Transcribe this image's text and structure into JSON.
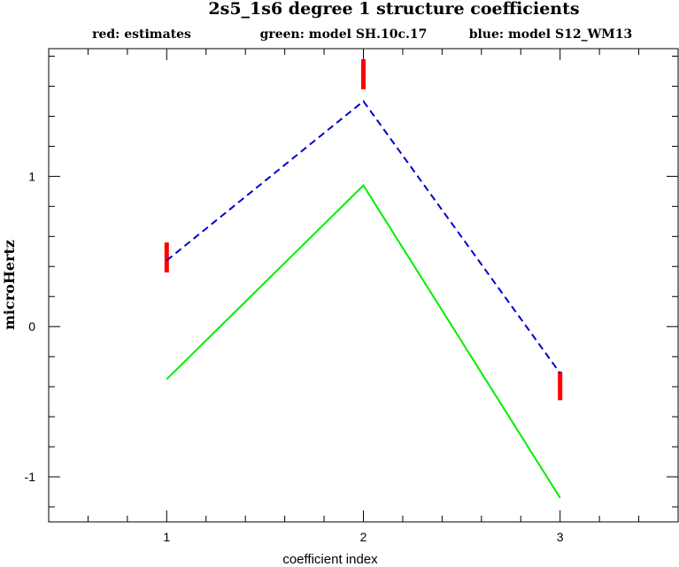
{
  "chart_data": {
    "type": "line",
    "title": "2s5_1s6 degree 1 structure coefficients",
    "xlabel": "coefficient index",
    "ylabel": "microHertz",
    "xlim": [
      0.4,
      3.6
    ],
    "ylim": [
      -1.3,
      1.85
    ],
    "x_ticks": [
      1,
      2,
      3
    ],
    "y_ticks": [
      -1,
      0,
      1
    ],
    "x_minor_step": 0.2,
    "y_minor_step": 0.2,
    "legend": [
      {
        "text": "red: estimates",
        "color": "#ff0000"
      },
      {
        "text": "green: model SH.10c.17",
        "color": "#00ee00"
      },
      {
        "text": "blue: model S12_WM13",
        "color": "#0000cc"
      }
    ],
    "series": [
      {
        "kind": "errorbar",
        "color": "#ff0000",
        "x": [
          1,
          2,
          3
        ],
        "low": [
          0.36,
          1.58,
          -0.49
        ],
        "high": [
          0.56,
          1.78,
          -0.3
        ]
      },
      {
        "kind": "line",
        "style": "solid",
        "color": "#00ee00",
        "x": [
          1,
          2,
          3
        ],
        "y": [
          -0.35,
          0.94,
          -1.14
        ]
      },
      {
        "kind": "line",
        "style": "dashed",
        "color": "#0000cc",
        "x": [
          1,
          2,
          3
        ],
        "y": [
          0.44,
          1.5,
          -0.31
        ]
      }
    ]
  }
}
